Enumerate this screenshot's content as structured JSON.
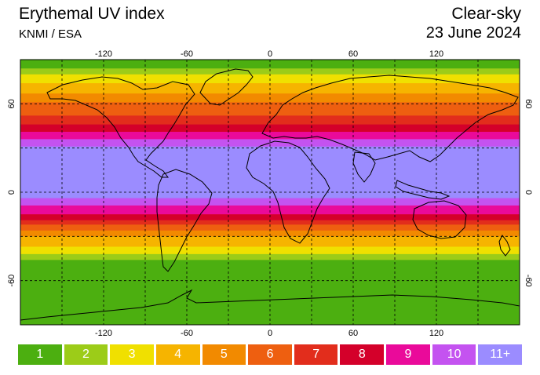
{
  "header": {
    "title": "Erythemal UV index",
    "source": "KNMI / ESA",
    "mode": "Clear-sky",
    "date": "23 June 2024"
  },
  "map": {
    "longitude_ticks": [
      -120,
      -60,
      0,
      60,
      120
    ],
    "latitude_ticks": [
      60,
      0,
      -60
    ],
    "grid_style": "dashed",
    "uv_bands_by_latitude": [
      {
        "lat_from": 90,
        "lat_to": 84,
        "uv": 1
      },
      {
        "lat_from": 84,
        "lat_to": 80,
        "uv": 2
      },
      {
        "lat_from": 80,
        "lat_to": 74,
        "uv": 3
      },
      {
        "lat_from": 74,
        "lat_to": 67,
        "uv": 4
      },
      {
        "lat_from": 67,
        "lat_to": 61,
        "uv": 5
      },
      {
        "lat_from": 61,
        "lat_to": 52,
        "uv": 6
      },
      {
        "lat_from": 52,
        "lat_to": 46,
        "uv": 7
      },
      {
        "lat_from": 46,
        "lat_to": 41,
        "uv": 8
      },
      {
        "lat_from": 41,
        "lat_to": 36,
        "uv": 9
      },
      {
        "lat_from": 36,
        "lat_to": 31,
        "uv": 10
      },
      {
        "lat_from": 31,
        "lat_to": -4,
        "uv": 11
      },
      {
        "lat_from": -4,
        "lat_to": -9,
        "uv": 10
      },
      {
        "lat_from": -9,
        "lat_to": -15,
        "uv": 9
      },
      {
        "lat_from": -15,
        "lat_to": -19,
        "uv": 8
      },
      {
        "lat_from": -19,
        "lat_to": -22,
        "uv": 7
      },
      {
        "lat_from": -22,
        "lat_to": -26,
        "uv": 6
      },
      {
        "lat_from": -26,
        "lat_to": -30,
        "uv": 5
      },
      {
        "lat_from": -30,
        "lat_to": -37,
        "uv": 4
      },
      {
        "lat_from": -37,
        "lat_to": -42,
        "uv": 3
      },
      {
        "lat_from": -42,
        "lat_to": -46,
        "uv": 2
      },
      {
        "lat_from": -46,
        "lat_to": -90,
        "uv": 1
      }
    ]
  },
  "legend": [
    {
      "label": "1",
      "color": "#4caf10"
    },
    {
      "label": "2",
      "color": "#9ccc18"
    },
    {
      "label": "3",
      "color": "#f0e000"
    },
    {
      "label": "4",
      "color": "#f6b400"
    },
    {
      "label": "5",
      "color": "#f28a00"
    },
    {
      "label": "6",
      "color": "#ee5f10"
    },
    {
      "label": "7",
      "color": "#e22d1c"
    },
    {
      "label": "8",
      "color": "#d4002a"
    },
    {
      "label": "9",
      "color": "#ea0a9a"
    },
    {
      "label": "10",
      "color": "#c453f0"
    },
    {
      "label": "11+",
      "color": "#9b8cff"
    }
  ]
}
